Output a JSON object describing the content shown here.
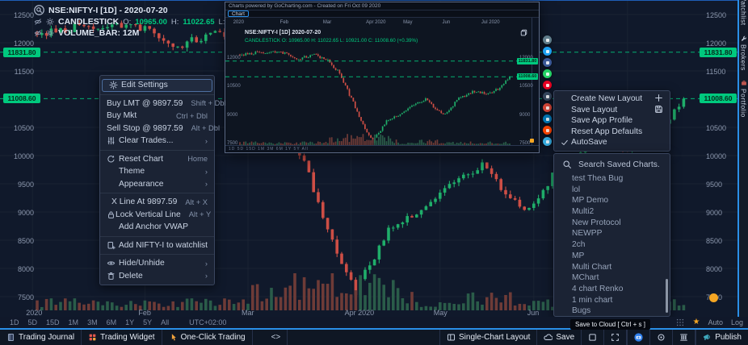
{
  "app": {
    "name": "GoCharting"
  },
  "header": {
    "symbol_title": "NSE:NIFTY-I [1D] - 2020-07-20",
    "candle_label": "CANDLESTICK",
    "ohlc": [
      {
        "k": "O:",
        "v": "10965.00"
      },
      {
        "k": "H:",
        "v": "11022.65"
      },
      {
        "k": "L:",
        "v": "10921.00"
      },
      {
        "k": "C:",
        "v": "11008.60"
      }
    ],
    "volume_label": "VOLUME_BAR: 12M"
  },
  "chart_data": {
    "type": "candlestick",
    "symbol": "NSE:NIFTY-I",
    "interval": "1D",
    "last_session": "2020-07-20",
    "last_ohlc": {
      "open": 10965.0,
      "high": 11022.65,
      "low": 10921.0,
      "close": 11008.6
    },
    "volume": "12M",
    "price_levels": [
      {
        "label": "11831.80",
        "value": 11831.8
      },
      {
        "label": "11008.60",
        "value": 11008.6
      }
    ],
    "y_ticks": [
      12500,
      12000,
      11500,
      10500,
      10000,
      9500,
      9000,
      8500,
      8000,
      7500
    ],
    "x_labels": [
      {
        "t": "2020",
        "d": -1
      },
      {
        "t": "Feb",
        "d": 23
      },
      {
        "t": "Mar",
        "d": 45
      },
      {
        "t": "Apr 2020",
        "d": 67
      },
      {
        "t": "May",
        "d": 86
      },
      {
        "t": "Jun",
        "d": 106
      },
      {
        "t": "Jul 2020",
        "d": 126
      }
    ],
    "trend_anchors": [
      [
        0,
        12180
      ],
      [
        10,
        12280
      ],
      [
        20,
        12350
      ],
      [
        30,
        11950
      ],
      [
        38,
        12150
      ],
      [
        45,
        11900
      ],
      [
        50,
        11300
      ],
      [
        55,
        10300
      ],
      [
        60,
        9200
      ],
      [
        65,
        8000
      ],
      [
        68,
        7600
      ],
      [
        75,
        8700
      ],
      [
        85,
        9250
      ],
      [
        95,
        9850
      ],
      [
        100,
        9350
      ],
      [
        105,
        9050
      ],
      [
        112,
        9900
      ],
      [
        120,
        10250
      ],
      [
        127,
        10150
      ],
      [
        133,
        10400
      ],
      [
        138,
        11008.6
      ]
    ],
    "colors": {
      "up": "#1fae6a",
      "down": "#cd4e45",
      "vol_up": "#2a5c49",
      "vol_down": "#6e3b37",
      "level": "#00c97e"
    }
  },
  "context_menu": {
    "sections": [
      {
        "items": [
          {
            "icon": "gear",
            "label": "Edit Settings",
            "highlight": true
          }
        ]
      },
      {
        "items": [
          {
            "label": "Buy LMT @ 9897.59",
            "shortcut": "Shift + Dbl",
            "flush": true
          },
          {
            "label": "Buy Mkt",
            "shortcut": "Ctrl + Dbl",
            "flush": true
          },
          {
            "label": "Sell Stop @ 9897.59",
            "shortcut": "Alt + Dbl",
            "flush": true
          },
          {
            "icon": "sliders",
            "label": "Clear Trades...",
            "shortcut": "›"
          }
        ]
      },
      {
        "items": [
          {
            "icon": "refresh",
            "label": "Reset Chart",
            "shortcut": "Home"
          },
          {
            "label": "Theme",
            "shortcut": "›"
          },
          {
            "label": "Appearance",
            "shortcut": "›"
          }
        ]
      },
      {
        "items": [
          {
            "label": "X Line At 9897.59",
            "shortcut": "Alt + X"
          },
          {
            "icon": "lock",
            "label": "Lock Vertical Line",
            "shortcut": "Alt + Y"
          },
          {
            "label": "Add Anchor VWAP"
          }
        ]
      },
      {
        "items": [
          {
            "icon": "docplus",
            "label": "Add NIFTY-I to watchlist"
          }
        ]
      },
      {
        "items": [
          {
            "icon": "eye",
            "label": "Hide/Unhide",
            "shortcut": "›"
          },
          {
            "icon": "trash",
            "label": "Delete",
            "shortcut": "›"
          }
        ]
      }
    ]
  },
  "layout_menu": {
    "items": [
      {
        "label": "Create New Layout",
        "right_icon": "plus"
      },
      {
        "label": "Save Layout",
        "right_icon": "floppy"
      },
      {
        "label": "Save App Profile"
      },
      {
        "label": "Reset App Defaults"
      },
      {
        "label": "AutoSave",
        "left_icon": "check"
      }
    ]
  },
  "saved_charts": {
    "search_placeholder": "Search Saved Charts.",
    "items": [
      "test Thea Bug",
      "lol",
      "MP Demo",
      "Multi2",
      "New Protocol",
      "NEWPP",
      "2ch",
      "MP",
      "Multi Chart",
      "MChart",
      "4 chart Renko",
      "1 min chart",
      "Bugs"
    ]
  },
  "preview": {
    "watermark": "Charts powered by GoCharting.com - Created on Fri Oct 09 2020",
    "tab_label": "Chart",
    "title": "NSE:NIFTY-I [1D] 2020-07-20",
    "legend": "CANDLESTICK O: 10965.00 H: 11022.65 L: 10921.00 C: 11008.60 (+0.39%)",
    "y_ticks": [
      12000,
      10500,
      9000,
      7500
    ],
    "tf_row": "1D 5D 15D 1M 3M 6M 1Y 5Y All"
  },
  "share_buttons": [
    {
      "name": "copy-link",
      "color": "#607d8b"
    },
    {
      "name": "twitter",
      "color": "#1da1f2"
    },
    {
      "name": "facebook",
      "color": "#3b5998"
    },
    {
      "name": "whatsapp",
      "color": "#25d366"
    },
    {
      "name": "pinterest",
      "color": "#e60023"
    },
    {
      "name": "tumblr",
      "color": "#35465c"
    },
    {
      "name": "mail",
      "color": "#d44638"
    },
    {
      "name": "linkedin",
      "color": "#0077b5"
    },
    {
      "name": "reddit",
      "color": "#ff4500"
    },
    {
      "name": "telegram",
      "color": "#37aee2"
    }
  ],
  "sidebar": {
    "tabs": [
      {
        "icon": "",
        "label": "Watchlist"
      },
      {
        "icon": "wrench",
        "label": "Brokers"
      },
      {
        "icon": "briefcase",
        "label": "Portfolio"
      }
    ]
  },
  "timeframe_bar": {
    "ranges": [
      "1D",
      "5D",
      "15D",
      "1M",
      "3M",
      "6M",
      "1Y",
      "5Y",
      "All"
    ],
    "timezone": "UTC+02:00",
    "auto_label": "Auto",
    "log_label": "Log"
  },
  "bottom_bar": {
    "left": [
      {
        "icon": "journal",
        "label": "Trading Journal"
      },
      {
        "icon": "widget",
        "label": "Trading Widget"
      },
      {
        "icon": "pointer",
        "label": "One-Click Trading"
      },
      {
        "icon": "code",
        "label": "<>"
      }
    ],
    "right": [
      {
        "icon": "layout",
        "label": "Single-Chart Layout"
      },
      {
        "icon": "cloud",
        "label": "Save"
      },
      {
        "icon": "square"
      },
      {
        "icon": "expand"
      },
      {
        "sep": true
      },
      {
        "icon": "camera"
      },
      {
        "icon": "target"
      },
      {
        "icon": "columns"
      },
      {
        "sep": true
      },
      {
        "icon": "megaphone",
        "label": "Publish"
      }
    ]
  },
  "tooltip": {
    "text": "Save to Cloud [ Ctrl + s ]"
  }
}
